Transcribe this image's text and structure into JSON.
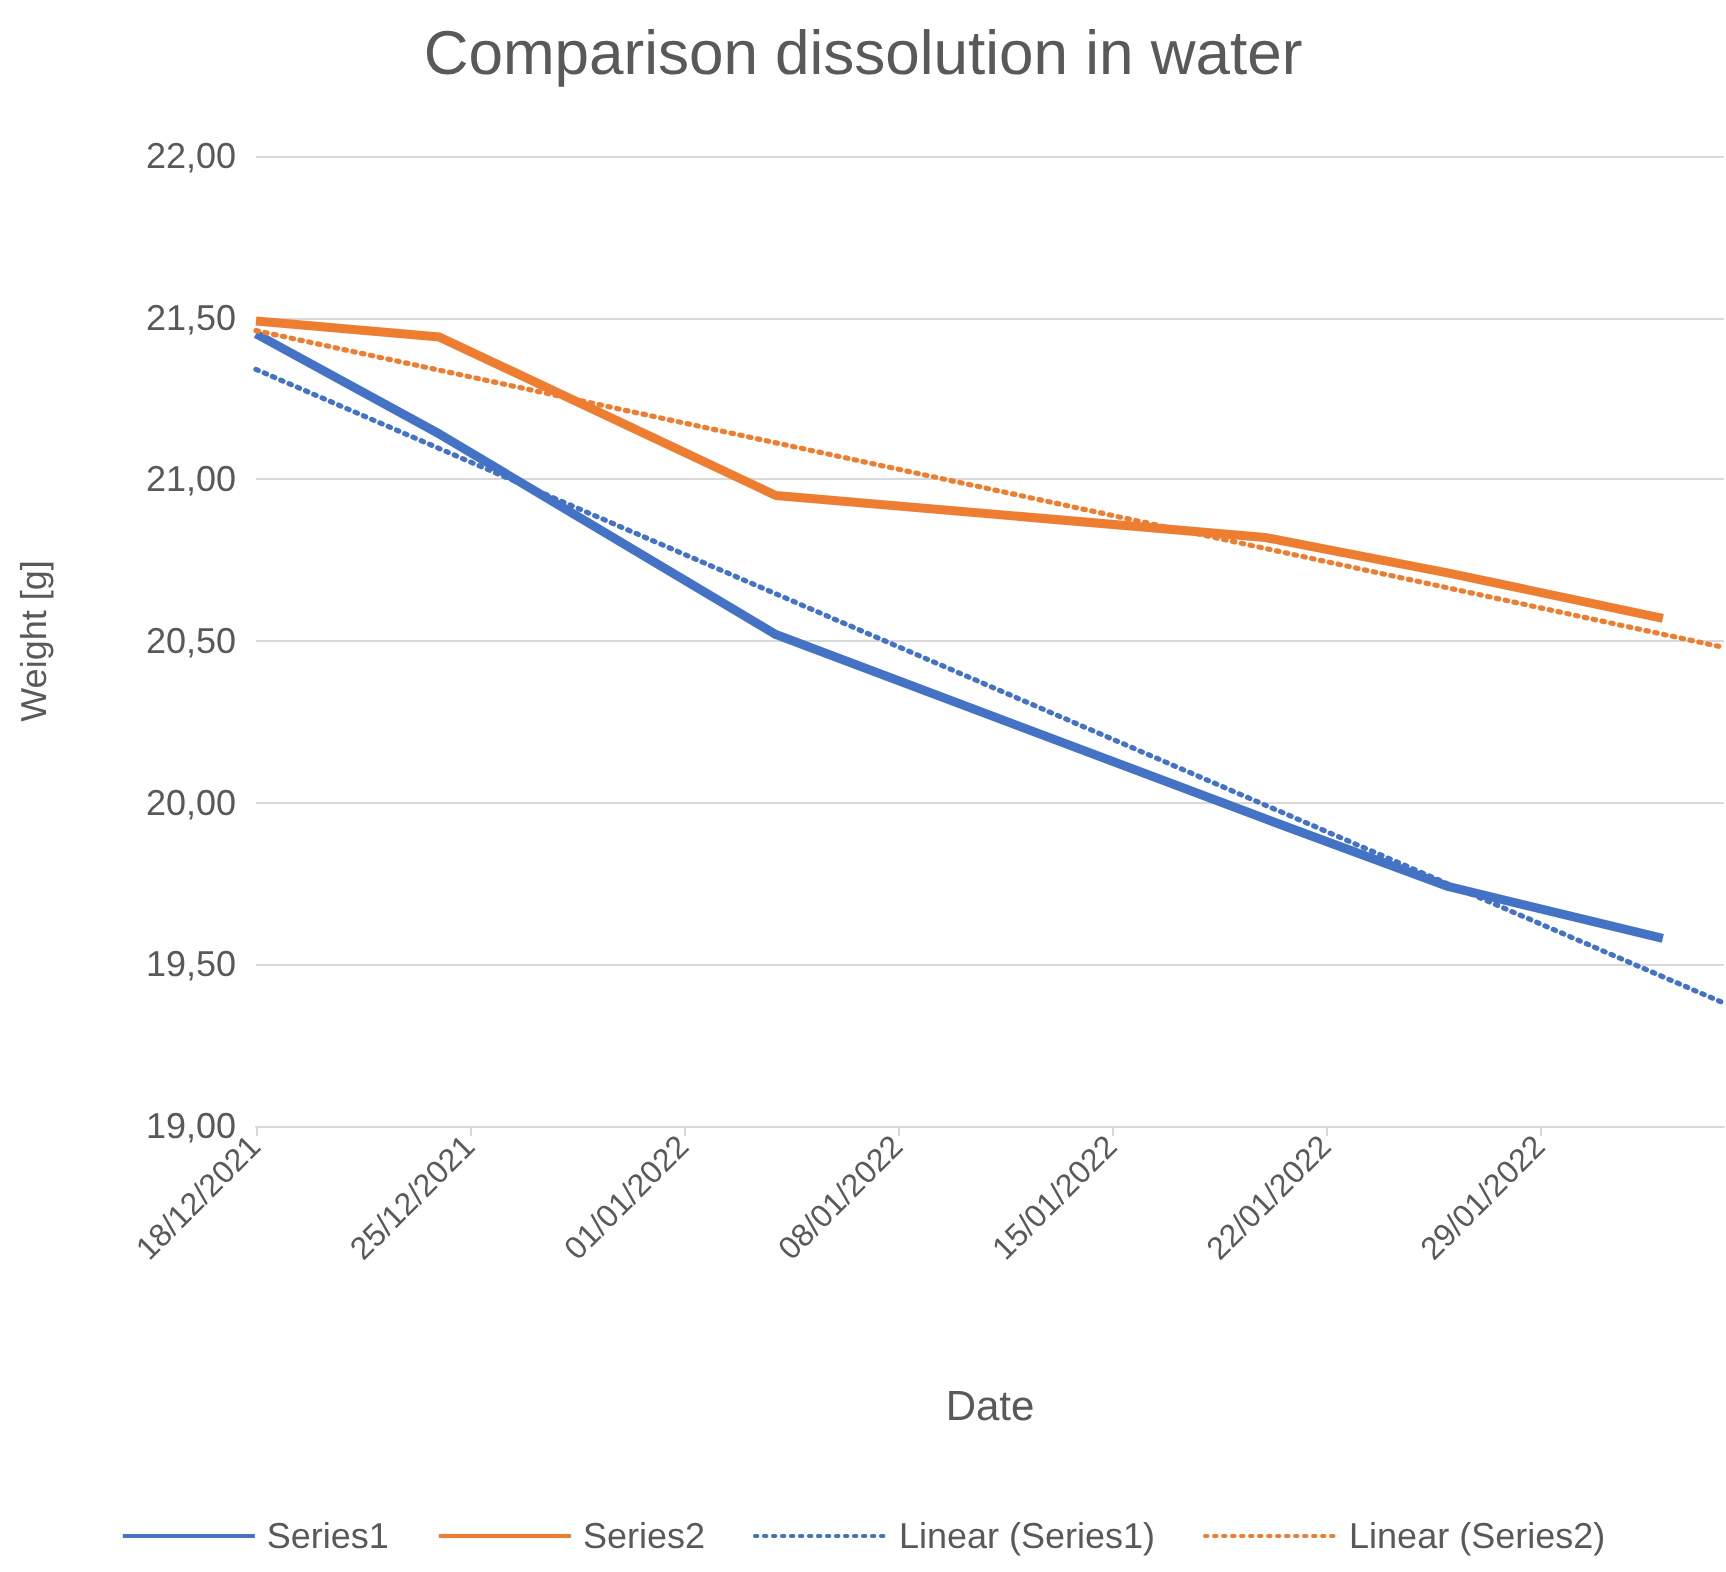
{
  "chart_data": {
    "type": "line",
    "title": "Comparison dissolution in water",
    "xlabel": "Date",
    "ylabel": "Weight [g]",
    "x": [
      "2021-12-18",
      "2021-12-24",
      "2022-01-04",
      "2022-01-20",
      "2022-01-26",
      "2022-02-02"
    ],
    "series": [
      {
        "name": "Series1",
        "color": "#4472c4",
        "values": [
          21.45,
          21.14,
          20.52,
          19.95,
          19.74,
          19.58
        ],
        "line_style": "solid"
      },
      {
        "name": "Series2",
        "color": "#ed7d31",
        "values": [
          21.49,
          21.44,
          20.95,
          20.82,
          20.71,
          20.57
        ],
        "line_style": "solid"
      },
      {
        "name": "Linear (Series1)",
        "color": "#4472c4",
        "x": [
          "2021-12-18",
          "2022-02-04"
        ],
        "values": [
          21.34,
          19.38
        ],
        "line_style": "dotted"
      },
      {
        "name": "Linear (Series2)",
        "color": "#ed7d31",
        "x": [
          "2021-12-18",
          "2022-02-04"
        ],
        "values": [
          21.46,
          20.48
        ],
        "line_style": "dotted"
      }
    ],
    "xlim": [
      "2021-12-18",
      "2022-02-04"
    ],
    "xticks": [
      {
        "value": "2021-12-18",
        "label": "18/12/2021"
      },
      {
        "value": "2021-12-25",
        "label": "25/12/2021"
      },
      {
        "value": "2022-01-01",
        "label": "01/01/2022"
      },
      {
        "value": "2022-01-08",
        "label": "08/01/2022"
      },
      {
        "value": "2022-01-15",
        "label": "15/01/2022"
      },
      {
        "value": "2022-01-22",
        "label": "22/01/2022"
      },
      {
        "value": "2022-01-29",
        "label": "29/01/2022"
      }
    ],
    "ylim": [
      19,
      22
    ],
    "yticks": [
      {
        "value": 19,
        "label": "19,00"
      },
      {
        "value": 19.5,
        "label": "19,50"
      },
      {
        "value": 20,
        "label": "20,00"
      },
      {
        "value": 20.5,
        "label": "20,50"
      },
      {
        "value": 21,
        "label": "21,00"
      },
      {
        "value": 21.5,
        "label": "21,50"
      },
      {
        "value": 22,
        "label": "22,00"
      }
    ],
    "grid": "y",
    "legend": "bottom",
    "marker": "none"
  }
}
